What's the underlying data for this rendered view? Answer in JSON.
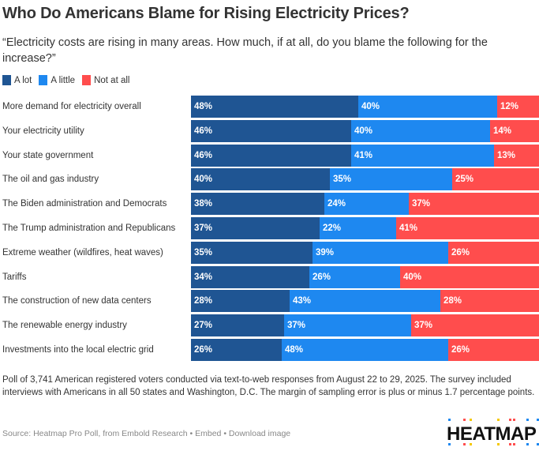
{
  "title": "Who Do Americans Blame for Rising Electricity Prices?",
  "subtitle": "“Electricity costs are rising in many areas. How much, if at all, do you blame the following for the increase?”",
  "colors": {
    "a_lot": "#1f5593",
    "a_little": "#1e88f0",
    "not_at_all": "#ff4d4d"
  },
  "chart_data": {
    "type": "bar",
    "orientation": "horizontal",
    "stacked": true,
    "normalized": true,
    "title": "Who Do Americans Blame for Rising Electricity Prices?",
    "xlabel": "",
    "ylabel": "",
    "xlim": [
      0,
      100
    ],
    "grid": false,
    "legend_position": "top-left",
    "categories": [
      "More demand for electricity overall",
      "Your electricity utility",
      "Your state government",
      "The oil and gas industry",
      "The Biden administration and Democrats",
      "The Trump administration and Republicans",
      "Extreme weather (wildfires, heat waves)",
      "Tariffs",
      "The construction of new data centers",
      "The renewable energy industry",
      "Investments into the local electric grid"
    ],
    "series": [
      {
        "name": "A lot",
        "color": "#1f5593",
        "values": [
          48,
          46,
          46,
          40,
          38,
          37,
          35,
          34,
          28,
          27,
          26
        ]
      },
      {
        "name": "A little",
        "color": "#1e88f0",
        "values": [
          40,
          40,
          41,
          35,
          24,
          22,
          39,
          26,
          43,
          37,
          48
        ]
      },
      {
        "name": "Not at all",
        "color": "#ff4d4d",
        "values": [
          12,
          14,
          13,
          25,
          37,
          41,
          26,
          40,
          28,
          37,
          26
        ]
      }
    ]
  },
  "note": "Poll of 3,741 American registered voters conducted via text-to-web responses from August 22 to 29, 2025. The survey included interviews with Americans in all 50 states and Washington, D.C. The margin of sampling error is plus or minus 1.7 percentage points.",
  "footer": {
    "source": "Source: Heatmap Pro Poll, from Embold Research",
    "separator": " • ",
    "embed_label": "Embed",
    "download_label": "Download image"
  },
  "logo": {
    "text": "HEATMAP",
    "dot_colors": [
      "#1e88f0",
      "#ff4d4d",
      "#f5c800",
      "#f5c800",
      "#ff4d4d",
      "#ff4d4d",
      "#1e88f0",
      "#1e88f0"
    ]
  }
}
